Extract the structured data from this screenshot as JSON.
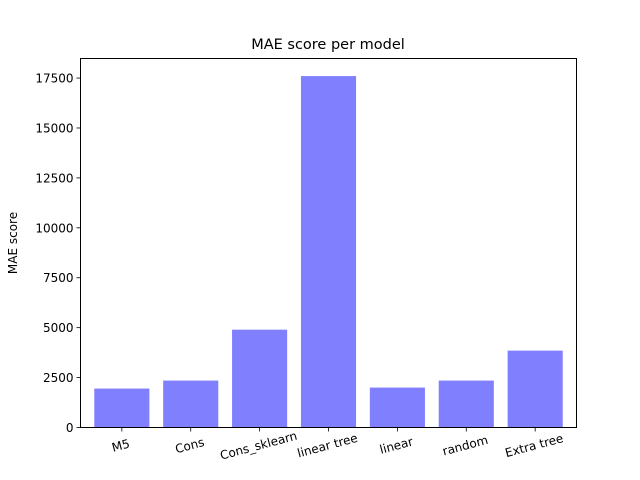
{
  "chart_data": {
    "type": "bar",
    "title": "MAE score per model",
    "xlabel": "",
    "ylabel": "MAE score",
    "categories": [
      "M5",
      "Cons",
      "Cons_sklearn",
      "linear tree",
      "linear",
      "random",
      "Extra tree"
    ],
    "values": [
      1950,
      2350,
      4900,
      17600,
      2000,
      2350,
      3850
    ],
    "ylim": [
      0,
      18480
    ],
    "yticks": [
      0,
      2500,
      5000,
      7500,
      10000,
      12500,
      15000,
      17500
    ],
    "ytick_labels": [
      "0",
      "2500",
      "5000",
      "7500",
      "10000",
      "12500",
      "15000",
      "17500"
    ],
    "bar_color": "#8080ff",
    "grid": false,
    "xtick_rotation_deg": -15
  }
}
